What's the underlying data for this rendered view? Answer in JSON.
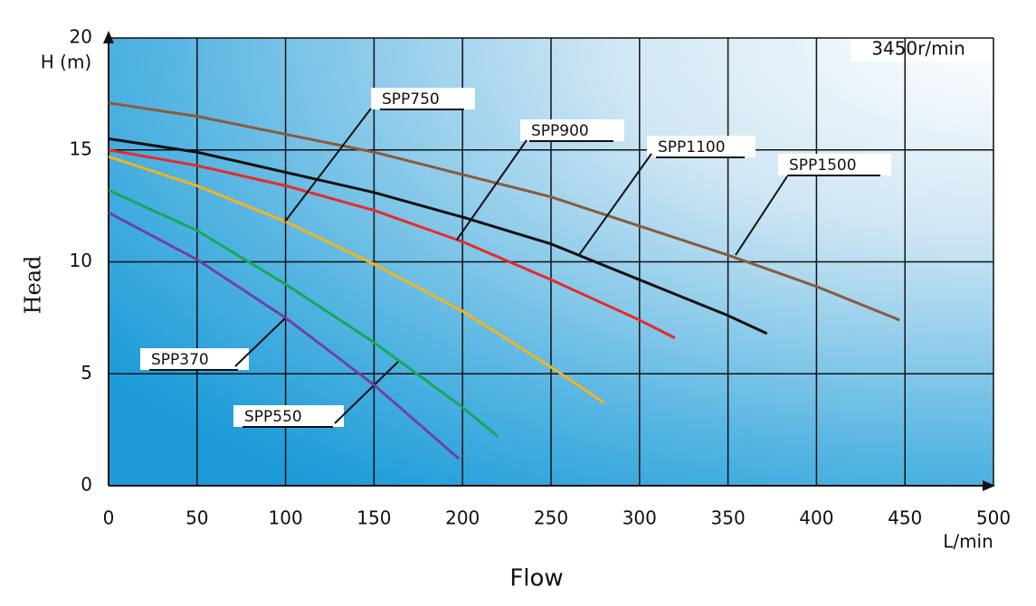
{
  "chart_data": {
    "type": "line",
    "x_label": "Flow",
    "x_unit": "L/min",
    "y_label": "Head",
    "y_unit": "H (m)",
    "annotation": "3450r/min",
    "xlim": [
      0,
      500
    ],
    "xticks": [
      0,
      50,
      100,
      150,
      200,
      250,
      300,
      350,
      400,
      450,
      500
    ],
    "ylim": [
      0,
      20
    ],
    "yticks": [
      0,
      5,
      10,
      15,
      20
    ],
    "grid": true,
    "series": [
      {
        "name": "SPP1500",
        "color": "#8b5a3c",
        "x": [
          0,
          50,
          100,
          150,
          200,
          250,
          300,
          350,
          400,
          447
        ],
        "values": [
          17.1,
          16.5,
          15.7,
          14.9,
          13.9,
          12.9,
          11.6,
          10.3,
          8.9,
          7.4
        ]
      },
      {
        "name": "SPP1100",
        "color": "#111111",
        "x": [
          0,
          50,
          100,
          150,
          200,
          250,
          300,
          350,
          372
        ],
        "values": [
          15.5,
          14.9,
          14.0,
          13.1,
          12.0,
          10.8,
          9.2,
          7.6,
          6.8
        ]
      },
      {
        "name": "SPP900",
        "color": "#e52b2b",
        "x": [
          0,
          50,
          100,
          150,
          200,
          250,
          300,
          320
        ],
        "values": [
          15.0,
          14.3,
          13.4,
          12.3,
          10.9,
          9.2,
          7.4,
          6.6
        ]
      },
      {
        "name": "SPP750",
        "color": "#f2b51c",
        "x": [
          0,
          50,
          100,
          150,
          200,
          250,
          280
        ],
        "values": [
          14.7,
          13.4,
          11.8,
          9.9,
          7.8,
          5.3,
          3.7
        ]
      },
      {
        "name": "SPP550",
        "color": "#17a85a",
        "x": [
          0,
          50,
          100,
          150,
          200,
          220
        ],
        "values": [
          13.2,
          11.4,
          9.0,
          6.4,
          3.5,
          2.2
        ]
      },
      {
        "name": "SPP370",
        "color": "#7040a8",
        "x": [
          0,
          50,
          100,
          150,
          198
        ],
        "values": [
          12.2,
          10.1,
          7.5,
          4.5,
          1.2
        ]
      }
    ]
  }
}
